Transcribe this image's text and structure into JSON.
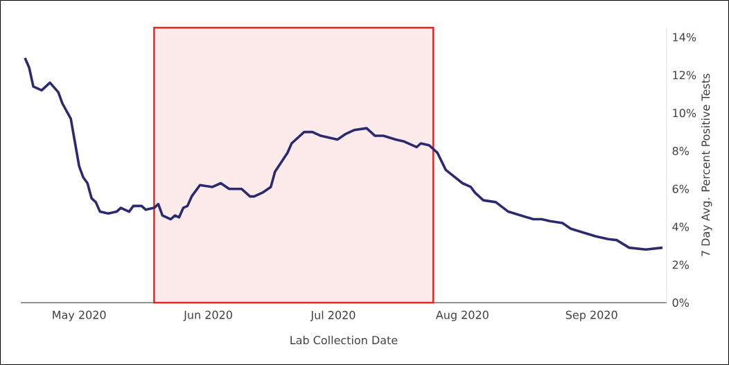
{
  "chart_data": {
    "type": "line",
    "xlabel": "Lab Collection Date",
    "ylabel": "7 Day Avg. Percent Positive Tests",
    "x": [
      "2020-04-18",
      "2020-04-19",
      "2020-04-20",
      "2020-04-22",
      "2020-04-24",
      "2020-04-26",
      "2020-04-27",
      "2020-04-29",
      "2020-05-01",
      "2020-05-02",
      "2020-05-03",
      "2020-05-04",
      "2020-05-05",
      "2020-05-06",
      "2020-05-08",
      "2020-05-10",
      "2020-05-11",
      "2020-05-13",
      "2020-05-14",
      "2020-05-16",
      "2020-05-17",
      "2020-05-19",
      "2020-05-20",
      "2020-05-21",
      "2020-05-23",
      "2020-05-24",
      "2020-05-25",
      "2020-05-26",
      "2020-05-27",
      "2020-05-28",
      "2020-05-30",
      "2020-06-02",
      "2020-06-04",
      "2020-06-06",
      "2020-06-09",
      "2020-06-11",
      "2020-06-12",
      "2020-06-14",
      "2020-06-16",
      "2020-06-17",
      "2020-06-20",
      "2020-06-21",
      "2020-06-24",
      "2020-06-26",
      "2020-06-28",
      "2020-06-30",
      "2020-07-02",
      "2020-07-04",
      "2020-07-06",
      "2020-07-09",
      "2020-07-11",
      "2020-07-13",
      "2020-07-16",
      "2020-07-18",
      "2020-07-21",
      "2020-07-22",
      "2020-07-24",
      "2020-07-26",
      "2020-07-28",
      "2020-08-01",
      "2020-08-03",
      "2020-08-04",
      "2020-08-06",
      "2020-08-09",
      "2020-08-12",
      "2020-08-18",
      "2020-08-20",
      "2020-08-22",
      "2020-08-25",
      "2020-08-27",
      "2020-09-02",
      "2020-09-05",
      "2020-09-07",
      "2020-09-10",
      "2020-09-14",
      "2020-09-18"
    ],
    "series": [
      {
        "color": "#2b2a6e",
        "values": [
          12.9,
          12.4,
          11.4,
          11.2,
          11.6,
          11.1,
          10.5,
          9.7,
          7.2,
          6.6,
          6.3,
          5.5,
          5.3,
          4.8,
          4.7,
          4.8,
          5.0,
          4.8,
          5.1,
          5.1,
          4.9,
          5.0,
          5.2,
          4.6,
          4.4,
          4.6,
          4.5,
          5.0,
          5.1,
          5.6,
          6.2,
          6.1,
          6.3,
          6.0,
          6.0,
          5.6,
          5.6,
          5.8,
          6.1,
          6.9,
          7.9,
          8.4,
          9.0,
          9.0,
          8.8,
          8.7,
          8.6,
          8.9,
          9.1,
          9.2,
          8.8,
          8.8,
          8.6,
          8.5,
          8.2,
          8.4,
          8.3,
          7.9,
          7.0,
          6.3,
          6.1,
          5.8,
          5.4,
          5.3,
          4.8,
          4.4,
          4.4,
          4.3,
          4.2,
          3.9,
          3.5,
          3.35,
          3.3,
          2.9,
          2.8,
          2.9
        ]
      }
    ],
    "xlim": [
      "2020-04-17",
      "2020-09-19"
    ],
    "xticks": [
      {
        "value": "2020-05-01",
        "label": "May 2020"
      },
      {
        "value": "2020-06-01",
        "label": "Jun 2020"
      },
      {
        "value": "2020-07-01",
        "label": "Jul 2020"
      },
      {
        "value": "2020-08-01",
        "label": "Aug 2020"
      },
      {
        "value": "2020-09-01",
        "label": "Sep 2020"
      }
    ],
    "ylim": [
      0,
      14.5
    ],
    "yticks": [
      {
        "value": 0,
        "label": "0%"
      },
      {
        "value": 2,
        "label": "2%"
      },
      {
        "value": 4,
        "label": "4%"
      },
      {
        "value": 6,
        "label": "6%"
      },
      {
        "value": 8,
        "label": "8%"
      },
      {
        "value": 10,
        "label": "10%"
      },
      {
        "value": 12,
        "label": "12%"
      },
      {
        "value": 14,
        "label": "14%"
      }
    ],
    "bands": [
      {
        "axis": "x",
        "from": "2020-05-19",
        "to": "2020-07-25",
        "color": "#e8231f"
      }
    ],
    "grid": false,
    "marker": "none",
    "line_style": "solid"
  }
}
